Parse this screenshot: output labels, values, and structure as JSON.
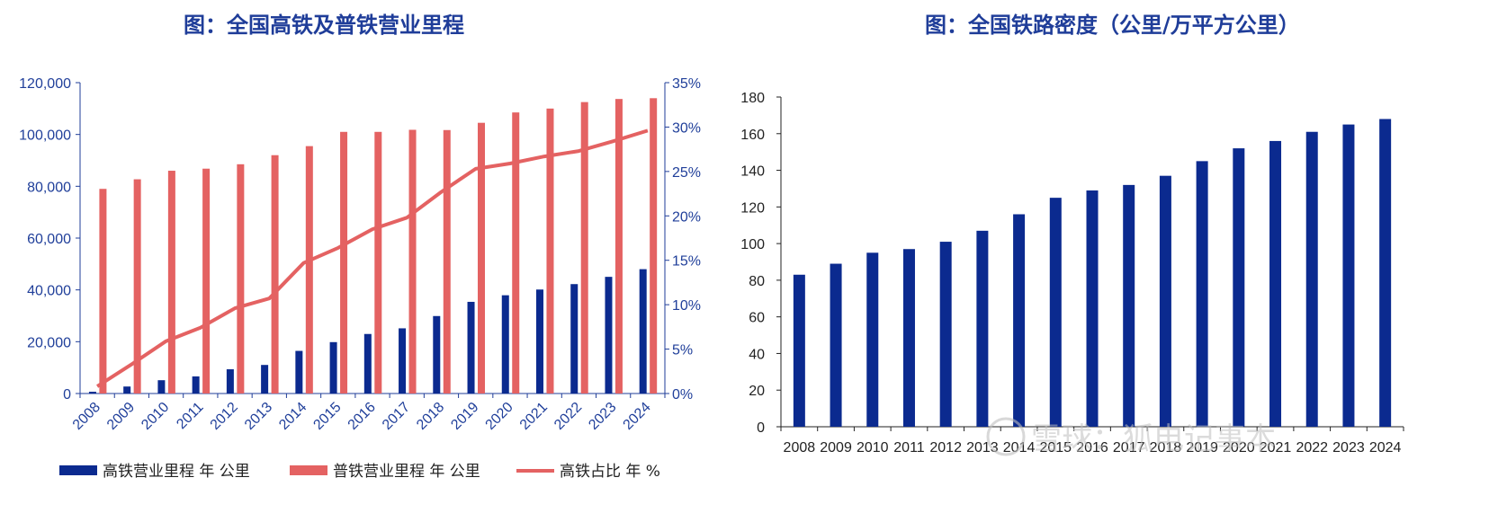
{
  "colors": {
    "navy": "#0b2a8f",
    "red": "#e46262",
    "axis": "#1f3d99"
  },
  "left_chart": {
    "title": "图：全国高铁及普铁营业里程",
    "chart_data": {
      "type": "bar",
      "categories": [
        "2008",
        "2009",
        "2010",
        "2011",
        "2012",
        "2013",
        "2014",
        "2015",
        "2016",
        "2017",
        "2018",
        "2019",
        "2020",
        "2021",
        "2022",
        "2023",
        "2024"
      ],
      "series": [
        {
          "name": "高铁营业里程 年 公里",
          "kind": "bar",
          "axis": "left",
          "values": [
            672,
            2699,
            5133,
            6601,
            9356,
            11028,
            16456,
            19838,
            22980,
            25164,
            29904,
            35388,
            37929,
            40139,
            42233,
            45036,
            48000
          ]
        },
        {
          "name": "普铁营业里程 年 公里",
          "kind": "bar",
          "axis": "left",
          "values": [
            79000,
            82700,
            86000,
            86800,
            88500,
            92000,
            95500,
            101000,
            101000,
            101800,
            101700,
            104500,
            108500,
            110000,
            112500,
            113700,
            114000
          ]
        },
        {
          "name": "高铁占比 年 %",
          "kind": "line",
          "axis": "right",
          "values": [
            0.8,
            3.3,
            5.9,
            7.4,
            9.6,
            10.7,
            14.7,
            16.4,
            18.5,
            19.8,
            22.7,
            25.3,
            25.9,
            26.7,
            27.3,
            28.4,
            29.6
          ]
        }
      ],
      "ylim": [
        0,
        120000
      ],
      "y_ticks": [
        "0",
        "20,000",
        "40,000",
        "60,000",
        "80,000",
        "100,000",
        "120,000"
      ],
      "y2lim": [
        0,
        35
      ],
      "y2_ticks": [
        "0%",
        "5%",
        "10%",
        "15%",
        "20%",
        "25%",
        "30%",
        "35%"
      ],
      "legend_position": "bottom"
    }
  },
  "right_chart": {
    "title": "图：全国铁路密度（公里/万平方公里）",
    "chart_data": {
      "type": "bar",
      "categories": [
        "2008",
        "2009",
        "2010",
        "2011",
        "2012",
        "2013",
        "2014",
        "2015",
        "2016",
        "2017",
        "2018",
        "2019",
        "2020",
        "2021",
        "2022",
        "2023",
        "2024"
      ],
      "values": [
        83,
        89,
        95,
        97,
        101,
        107,
        116,
        125,
        129,
        132,
        137,
        145,
        152,
        156,
        161,
        165,
        168
      ],
      "ylim": [
        0,
        180
      ],
      "y_ticks": [
        "0",
        "20",
        "40",
        "60",
        "80",
        "100",
        "120",
        "140",
        "160",
        "180"
      ]
    }
  },
  "watermark": "雪球：狐电记事本"
}
